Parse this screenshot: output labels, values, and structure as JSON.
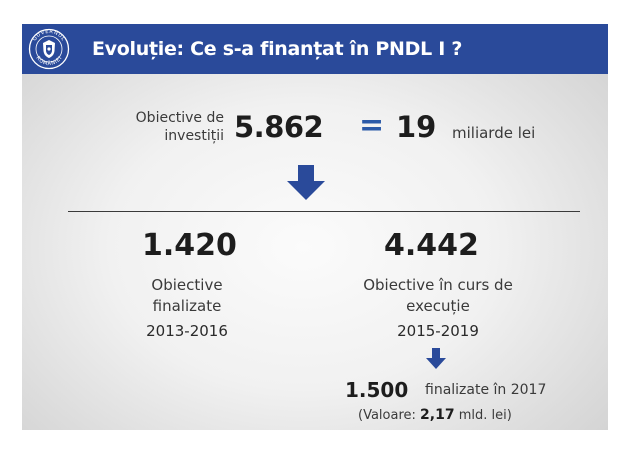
{
  "header": {
    "title": "Evoluție: Ce s-a finanțat în PNDL I ?",
    "seal_text_top": "GUVERNUL",
    "seal_text_bottom": "ROMÂNIEI"
  },
  "investitii": {
    "label": "Obiective de investiții",
    "count": "5.862",
    "equals": "=",
    "amount": "19",
    "unit": "miliarde lei"
  },
  "finalizate": {
    "count": "1.420",
    "label": "Obiective finalizate",
    "period": "2013-2016"
  },
  "in_curs": {
    "count": "4.442",
    "label": "Obiective în curs de execuție",
    "period": "2015-2019"
  },
  "finalizate_2017": {
    "count": "1.500",
    "text": "finalizate în 2017",
    "value_prefix": "(Valoare:",
    "value": "2,17",
    "value_suffix": "mld. lei)"
  },
  "colors": {
    "header_bg": "#2a4a9a",
    "accent_blue": "#2b5aa8",
    "text_dark": "#1d1d1d"
  },
  "icons": [
    "government-seal-icon",
    "arrow-down-icon"
  ]
}
